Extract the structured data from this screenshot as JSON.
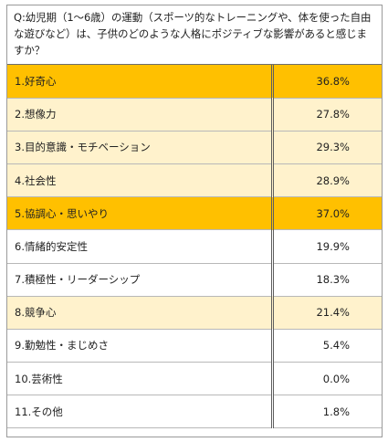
{
  "question": "Q:幼児期（1～6歳）の運動（スポーツ的なトレーニングや、体を使った自由な遊びなど）は、子供のどのような人格にポジティブな影響があると感じますか？",
  "colors": {
    "highlight": "#ffc000",
    "pale": "#fff2cc",
    "plain": "#ffffff"
  },
  "rows": [
    {
      "label": "1.好奇心",
      "value": "36.8%",
      "style": "highlight"
    },
    {
      "label": "2.想像力",
      "value": "27.8%",
      "style": "pale"
    },
    {
      "label": "3.目的意識・モチベーション",
      "value": "29.3%",
      "style": "pale"
    },
    {
      "label": "4.社会性",
      "value": "28.9%",
      "style": "pale"
    },
    {
      "label": "5.協調心・思いやり",
      "value": "37.0%",
      "style": "highlight"
    },
    {
      "label": "6.情緒的安定性",
      "value": "19.9%",
      "style": "plain"
    },
    {
      "label": "7.積極性・リーダーシップ",
      "value": "18.3%",
      "style": "plain"
    },
    {
      "label": "8.競争心",
      "value": "21.4%",
      "style": "pale"
    },
    {
      "label": "9.勤勉性・まじめさ",
      "value": "5.4%",
      "style": "plain"
    },
    {
      "label": "10.芸術性",
      "value": "0.0%",
      "style": "plain"
    },
    {
      "label": "11.その他",
      "value": "1.8%",
      "style": "plain"
    }
  ]
}
